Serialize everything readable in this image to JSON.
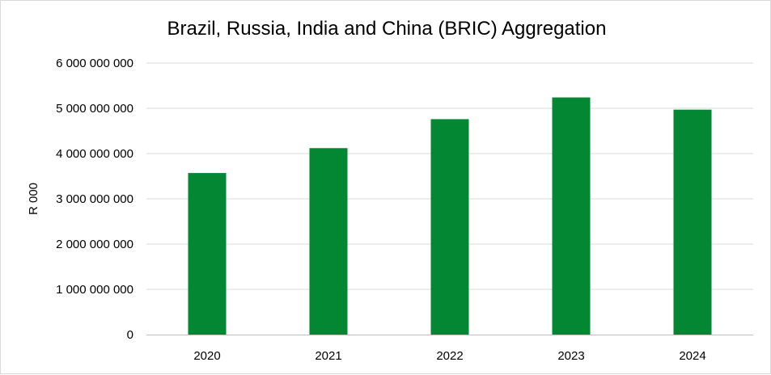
{
  "chart_data": {
    "type": "bar",
    "title": "Brazil, Russia, India and China (BRIC) Aggregation",
    "ylabel": "R 000",
    "xlabel": "",
    "categories": [
      "2020",
      "2021",
      "2022",
      "2023",
      "2024"
    ],
    "values": [
      3570000000,
      4120000000,
      4760000000,
      5240000000,
      4970000000
    ],
    "ylim": [
      0,
      6000000000
    ],
    "yticks": [
      0,
      1000000000,
      2000000000,
      3000000000,
      4000000000,
      5000000000,
      6000000000
    ],
    "ytick_labels": [
      "0",
      "1 000 000 000",
      "2 000 000 000",
      "3 000 000 000",
      "4 000 000 000",
      "5 000 000 000",
      "6 000 000 000"
    ],
    "grid": true,
    "legend": "none",
    "bar_color": "#038732",
    "grid_color": "#d9d9d9",
    "axis_color": "#bfbfbf"
  }
}
